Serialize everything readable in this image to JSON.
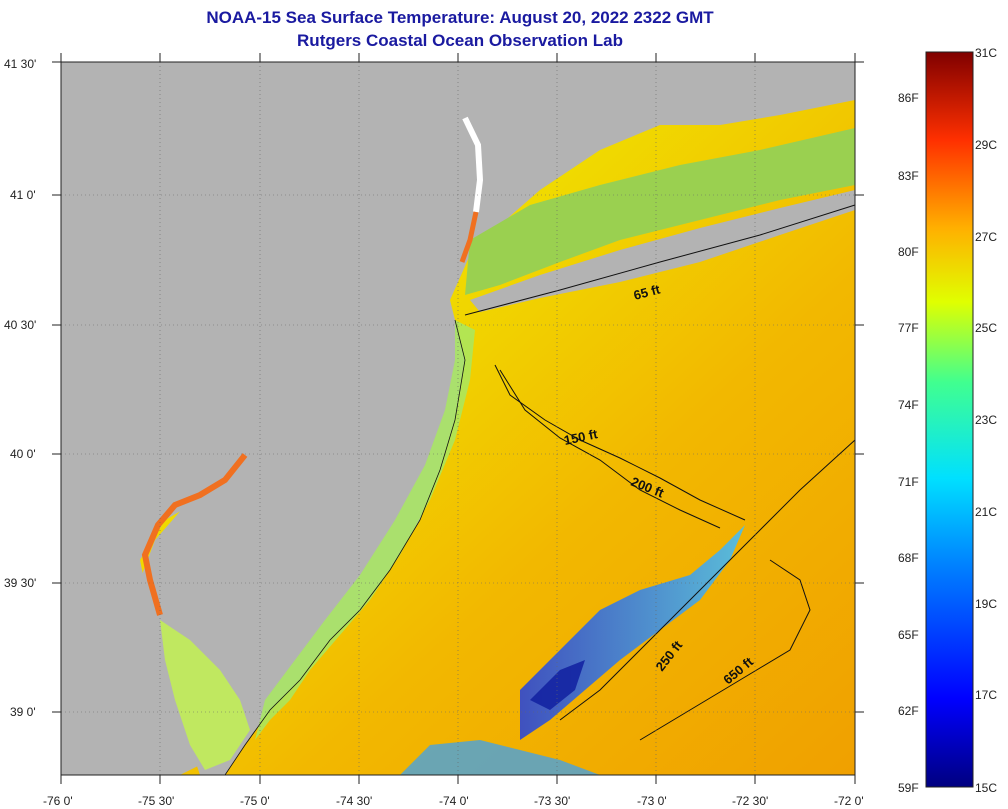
{
  "title": {
    "line1": "NOAA-15 Sea Surface Temperature:  August 20, 2022 2322 GMT",
    "line2": "Rutgers Coastal Ocean Observation Lab"
  },
  "map": {
    "lat_labels": [
      "41 30'",
      "41 0'",
      "40 30'",
      "40 0'",
      "39 30'",
      "39 0'"
    ],
    "lon_labels": [
      "-76 0'",
      "-75 30'",
      "-75 0'",
      "-74 30'",
      "-74 0'",
      "-73 30'",
      "-73 0'",
      "-72 30'",
      "-72 0'"
    ],
    "isobaths": [
      "65 ft",
      "150 ft",
      "200 ft",
      "250 ft",
      "650 ft"
    ],
    "land_color": "#b3b3b3",
    "ocean_color": "#e8d400"
  },
  "colorbar": {
    "fahrenheit": [
      "86F",
      "83F",
      "80F",
      "77F",
      "74F",
      "71F",
      "68F",
      "65F",
      "62F",
      "59F"
    ],
    "celsius": [
      "31C",
      "29C",
      "27C",
      "25C",
      "23C",
      "21C",
      "19C",
      "17C",
      "15C"
    ],
    "range_c": [
      15,
      31
    ]
  }
}
